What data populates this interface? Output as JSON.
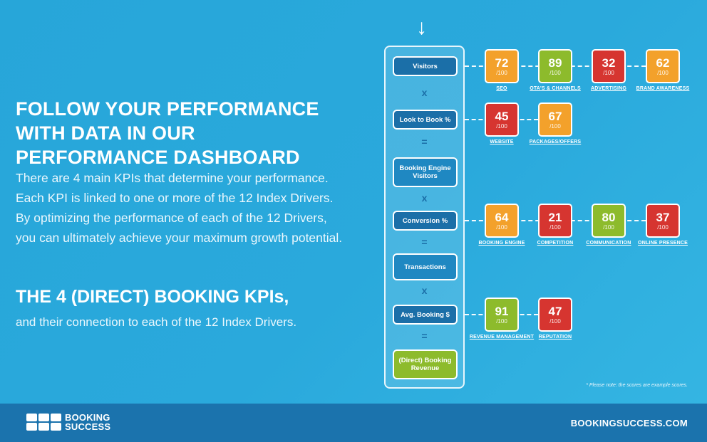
{
  "headline": [
    "FOLLOW YOUR PERFORMANCE",
    "WITH DATA IN OUR",
    "PERFORMANCE DASHBOARD"
  ],
  "intro": "There are 4 main KPIs that determine your performance. Each KPI is linked to one or more of the 12 Index Drivers. By optimizing the performance of each of the 12 Drivers, you can ultimately achieve your maximum growth potential.",
  "kpi_heading": "THE 4 (DIRECT) BOOKING KPIs,",
  "kpi_sub": "and their connection to each of the 12 Index Drivers.",
  "top_arrow": "↓",
  "kpi_chain": [
    {
      "label": "Visitors",
      "style": "primary"
    },
    {
      "op": "x"
    },
    {
      "label": "Look to Book %",
      "style": "primary"
    },
    {
      "op": "="
    },
    {
      "label": "Booking Engine Visitors",
      "style": "alt"
    },
    {
      "op": "x"
    },
    {
      "label": "Conversion %",
      "style": "primary"
    },
    {
      "op": "="
    },
    {
      "label": "Transactions",
      "style": "alt"
    },
    {
      "op": "x"
    },
    {
      "label": "Avg. Booking $",
      "style": "primary"
    },
    {
      "op": "="
    },
    {
      "label": "(Direct) Booking Revenue",
      "style": "green"
    }
  ],
  "driver_max": "/100",
  "driver_rows": [
    {
      "kpi": "Visitors",
      "drivers": [
        {
          "score": 72,
          "label": "SEO",
          "color": "#f3a12b"
        },
        {
          "score": 89,
          "label": "OTA'S & CHANNELS",
          "color": "#8dbb2c"
        },
        {
          "score": 32,
          "label": "ADVERTISING",
          "color": "#d63530"
        },
        {
          "score": 62,
          "label": "BRAND AWARENESS",
          "color": "#f3a12b"
        }
      ]
    },
    {
      "kpi": "Look to Book %",
      "drivers": [
        {
          "score": 45,
          "label": "WEBSITE",
          "color": "#d63530"
        },
        {
          "score": 67,
          "label": "PACKAGES/OFFERS",
          "color": "#f3a12b"
        }
      ]
    },
    {
      "kpi": "Conversion %",
      "drivers": [
        {
          "score": 64,
          "label": "BOOKING ENGINE",
          "color": "#f3a12b"
        },
        {
          "score": 21,
          "label": "COMPETITION",
          "color": "#d63530"
        },
        {
          "score": 80,
          "label": "COMMUNICATION",
          "color": "#8dbb2c"
        },
        {
          "score": 37,
          "label": "ONLINE PRESENCE",
          "color": "#d63530"
        }
      ]
    },
    {
      "kpi": "Avg. Booking $",
      "drivers": [
        {
          "score": 91,
          "label": "REVENUE MANAGEMENT",
          "color": "#8dbb2c"
        },
        {
          "score": 47,
          "label": "REPUTATION",
          "color": "#d63530"
        }
      ]
    }
  ],
  "footnote": "* Please note: the scores are example scores.",
  "footer": {
    "logo_line1": "BOOKING",
    "logo_line2": "SUCCESS",
    "site_url": "BOOKINGSUCCESS.COM"
  }
}
